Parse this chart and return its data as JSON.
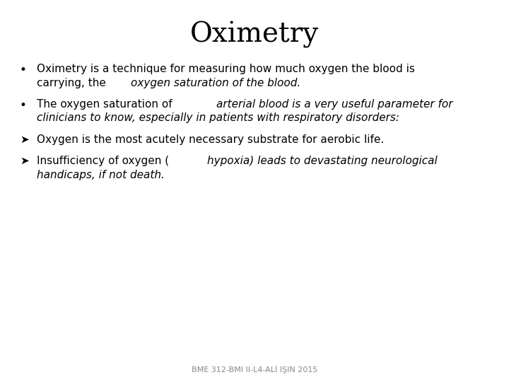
{
  "title": "Oximetry",
  "background_color": "#ffffff",
  "title_fontsize": 28,
  "title_font": "DejaVu Serif",
  "footer": "BME 312-BMI II-L4-ALİ IŞIN 2015",
  "footer_fontsize": 8,
  "text_fontsize": 11,
  "text_color": "#000000",
  "bullet1_normal1": "Oximetry is a technique for measuring how much oxygen the blood is",
  "bullet1_normal2": "carrying, the ",
  "bullet1_italic": "oxygen saturation of the blood.",
  "bullet2_normal1": "The oxygen saturation of ",
  "bullet2_italic1": "arterial blood is a very useful parameter for",
  "bullet2_italic2": "clinicians to know, especially in patients with respiratory disorders:",
  "bullet3": "Oxygen is the most acutely necessary substrate for aerobic life.",
  "bullet4_normal": "Insufficiency of oxygen (",
  "bullet4_italic1": "hypoxia) leads to devastating neurological",
  "bullet4_italic2": "handicaps, if not death.",
  "marker_bullet": "•",
  "marker_arrow": "➤"
}
